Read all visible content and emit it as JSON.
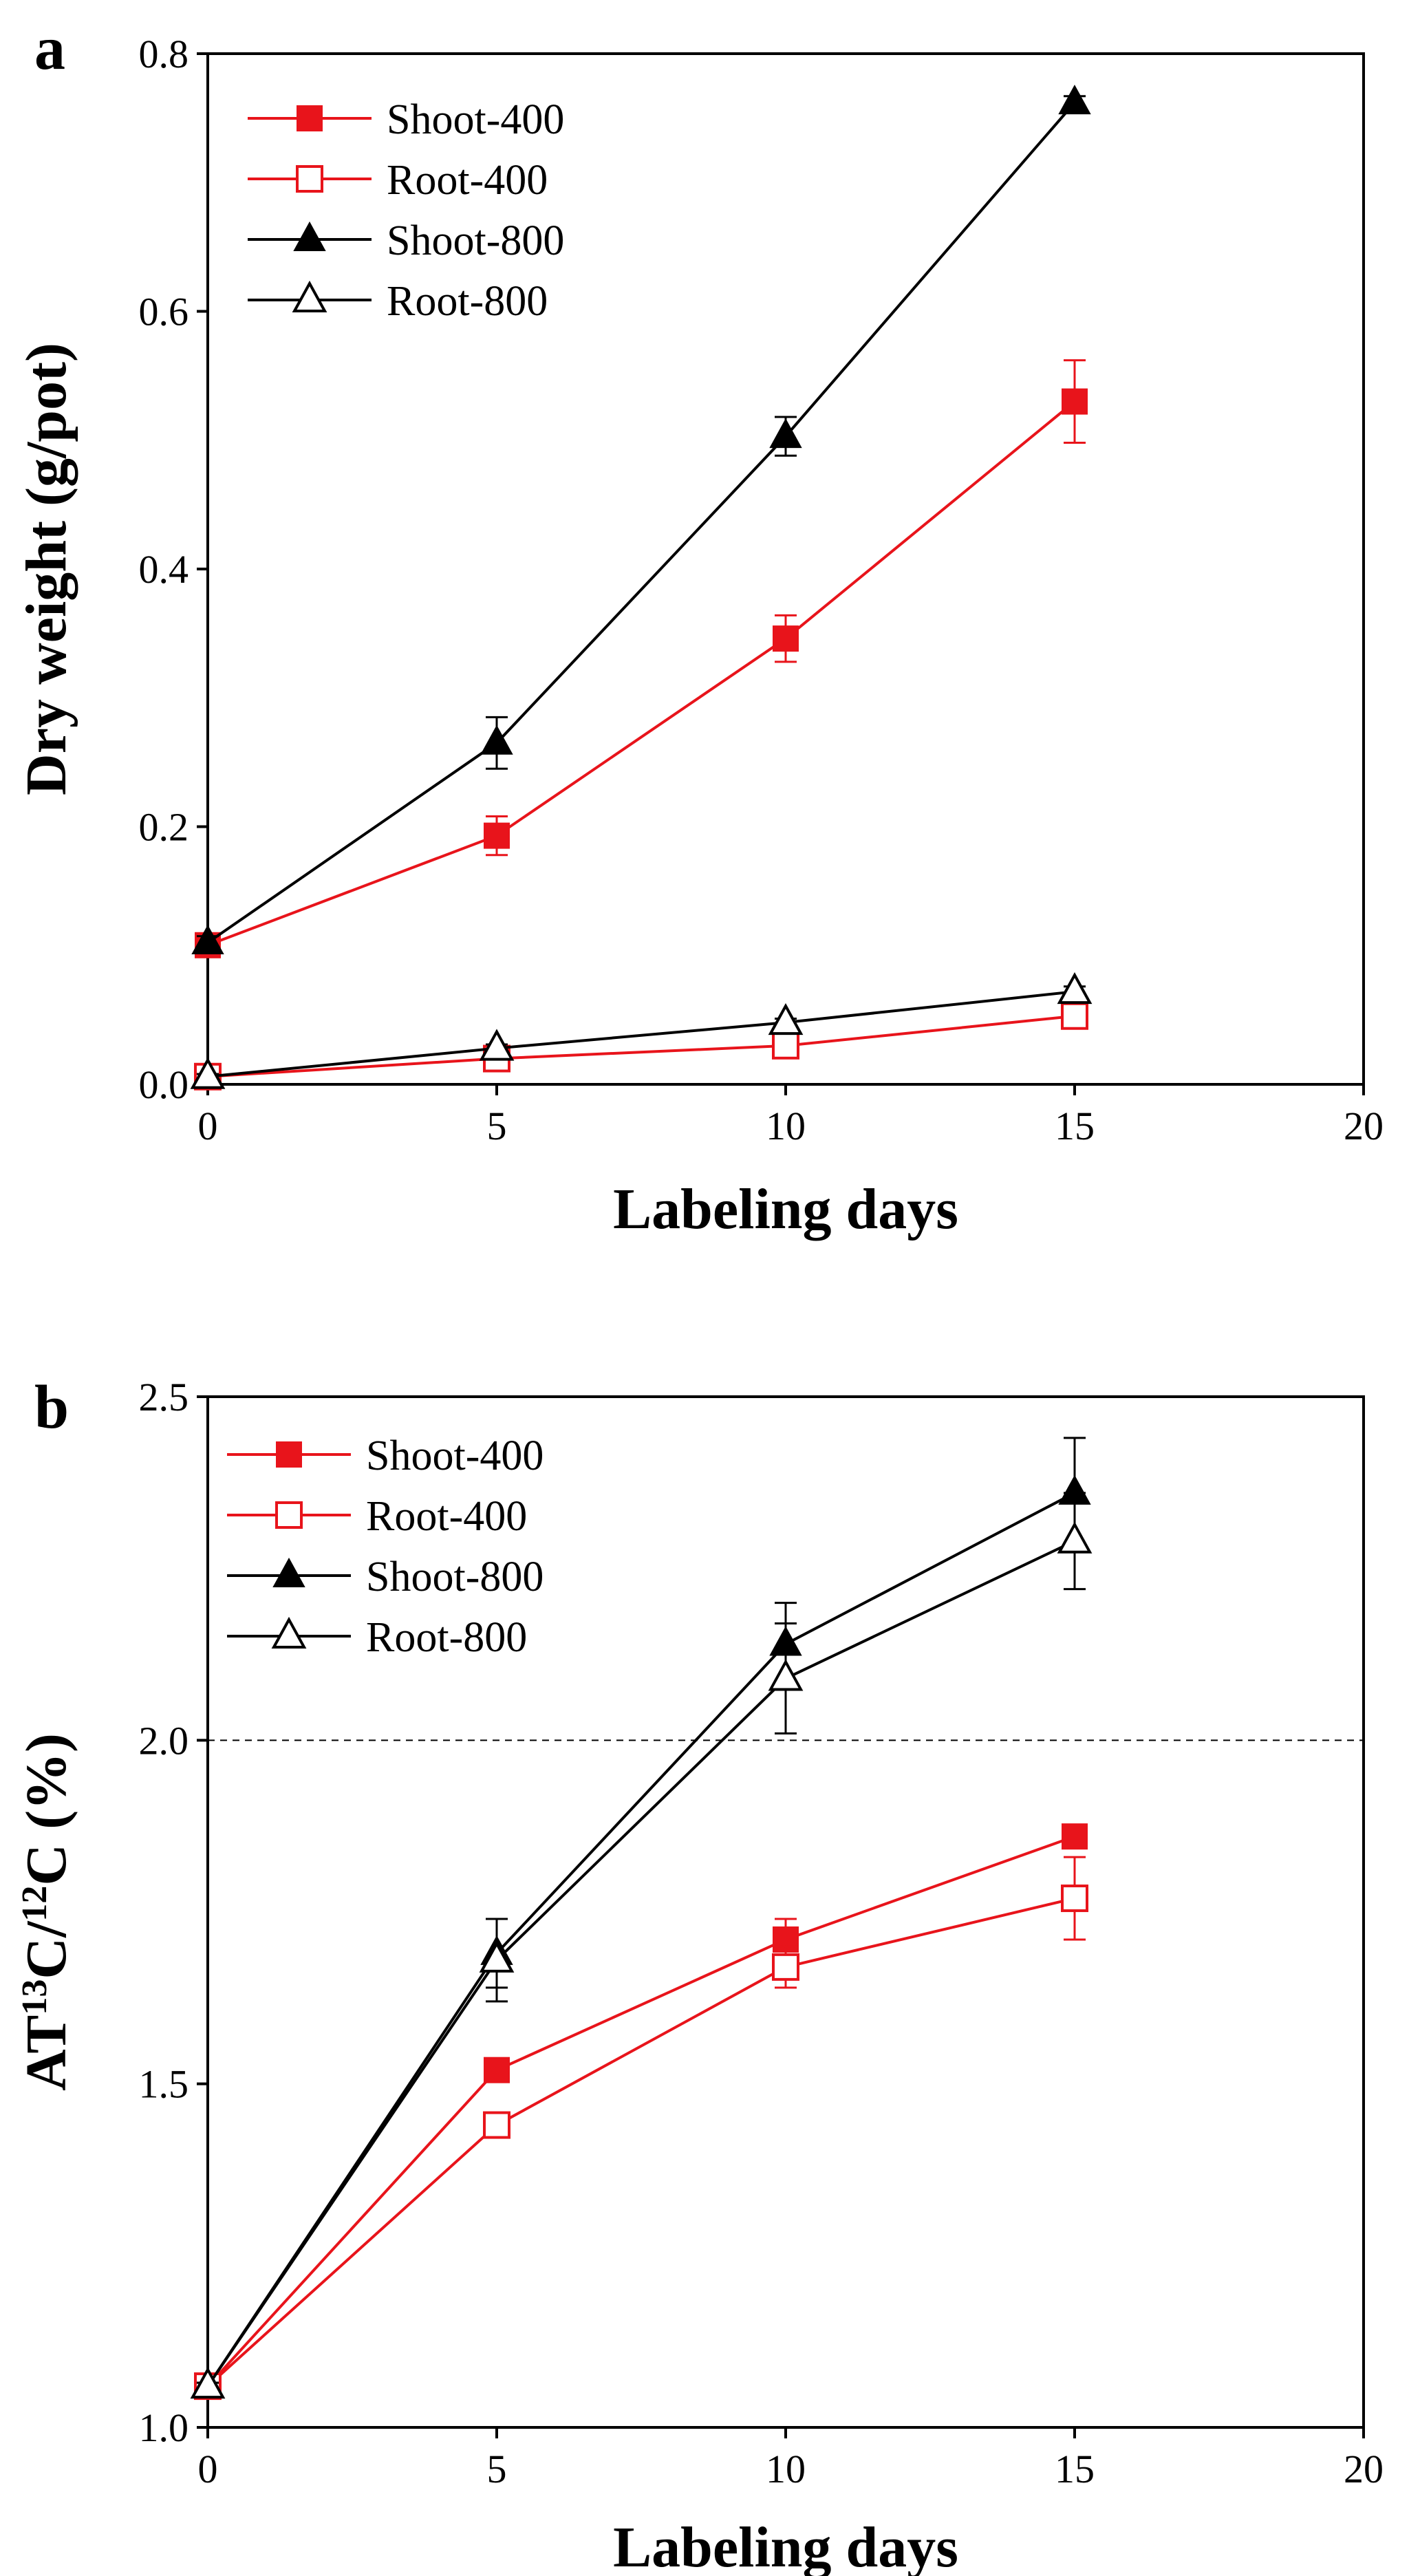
{
  "chart_data": [
    {
      "panel": "a",
      "type": "line",
      "xlabel": "Labeling days",
      "ylabel": "Dry weight (g/pot)",
      "xlim": [
        0,
        20
      ],
      "ylim": [
        0.0,
        0.8
      ],
      "xticks": [
        "0",
        "5",
        "10",
        "15",
        "20"
      ],
      "yticks": [
        "0.0",
        "0.2",
        "0.4",
        "0.6",
        "0.8"
      ],
      "legend_position": "top-left",
      "reference_line": null,
      "series": [
        {
          "name": "Shoot-400",
          "color": "#e8141b",
          "marker": "square",
          "filled": true,
          "x": [
            0,
            5,
            10,
            15
          ],
          "values": [
            0.108,
            0.193,
            0.346,
            0.53
          ],
          "errors": [
            0.005,
            0.015,
            0.018,
            0.032
          ]
        },
        {
          "name": "Root-400",
          "color": "#e8141b",
          "marker": "square",
          "filled": false,
          "x": [
            0,
            5,
            10,
            15
          ],
          "values": [
            0.006,
            0.02,
            0.03,
            0.053
          ],
          "errors": [
            0.002,
            0.004,
            0.005,
            0.008
          ]
        },
        {
          "name": "Shoot-800",
          "color": "#000000",
          "marker": "triangle",
          "filled": true,
          "x": [
            0,
            5,
            10,
            15
          ],
          "values": [
            0.11,
            0.265,
            0.503,
            0.762
          ],
          "errors": [
            0.005,
            0.02,
            0.015,
            0.005
          ]
        },
        {
          "name": "Root-800",
          "color": "#000000",
          "marker": "triangle",
          "filled": false,
          "x": [
            0,
            5,
            10,
            15
          ],
          "values": [
            0.006,
            0.028,
            0.048,
            0.072
          ],
          "errors": [
            0.002,
            0.003,
            0.003,
            0.004
          ]
        }
      ]
    },
    {
      "panel": "b",
      "type": "line",
      "xlabel": "Labeling days",
      "ylabel_parts": [
        "AT",
        "13",
        "C/",
        "12",
        "C (%)"
      ],
      "xlim": [
        0,
        20
      ],
      "ylim": [
        1.0,
        2.5
      ],
      "xticks": [
        "0",
        "5",
        "10",
        "15",
        "20"
      ],
      "yticks": [
        "1.0",
        "1.5",
        "2.0",
        "2.5"
      ],
      "legend_position": "top-left",
      "reference_line": 2.0,
      "series": [
        {
          "name": "Shoot-400",
          "color": "#e8141b",
          "marker": "square",
          "filled": true,
          "x": [
            0,
            5,
            10,
            15
          ],
          "values": [
            1.06,
            1.52,
            1.71,
            1.86
          ],
          "errors": [
            0.005,
            0.01,
            0.03,
            0.01
          ]
        },
        {
          "name": "Root-400",
          "color": "#e8141b",
          "marker": "square",
          "filled": false,
          "x": [
            0,
            5,
            10,
            15
          ],
          "values": [
            1.06,
            1.44,
            1.67,
            1.77
          ],
          "errors": [
            0.005,
            0.01,
            0.03,
            0.06
          ]
        },
        {
          "name": "Shoot-800",
          "color": "#000000",
          "marker": "triangle",
          "filled": true,
          "x": [
            0,
            5,
            10,
            15
          ],
          "values": [
            1.06,
            1.69,
            2.14,
            2.36
          ],
          "errors": [
            0.005,
            0.05,
            0.06,
            0.08
          ]
        },
        {
          "name": "Root-800",
          "color": "#000000",
          "marker": "triangle",
          "filled": false,
          "x": [
            0,
            5,
            10,
            15
          ],
          "values": [
            1.06,
            1.68,
            2.09,
            2.29
          ],
          "errors": [
            0.005,
            0.06,
            0.08,
            0.07
          ]
        }
      ]
    }
  ]
}
